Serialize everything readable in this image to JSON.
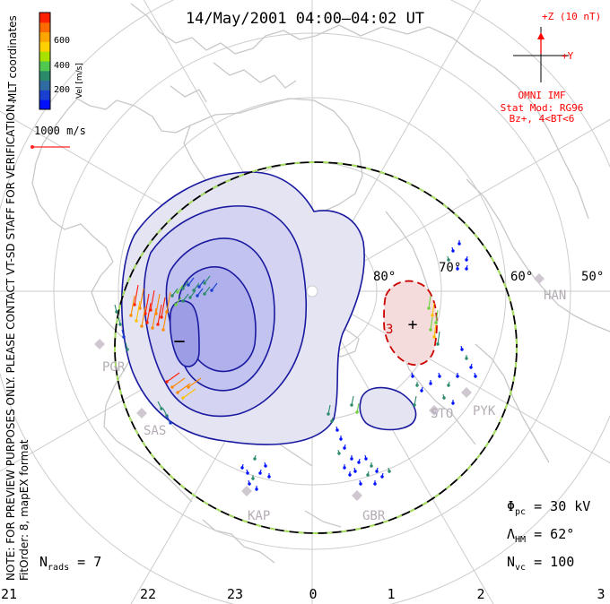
{
  "title": "14/May/2001 04:00–04:02 UT",
  "colorbar": {
    "unit_label": "Vel [m/s]",
    "ticks": [
      "600",
      "400",
      "200"
    ],
    "colors": [
      "#ff2000",
      "#ff6a00",
      "#ffa500",
      "#ffd000",
      "#a8e000",
      "#50c850",
      "#2a8a6a",
      "#2f6aa0",
      "#1a3fd0",
      "#0010ff"
    ]
  },
  "side_labels": {
    "coords": "MLT coordinates",
    "preview": "NOTE: FOR PREVIEW PURPOSES ONLY. PLEASE CONTACT VT-SD STAFF FOR VERIFICATION.",
    "fit": "FitOrder: 8, mapEX format"
  },
  "velocity_scale": {
    "label": "1000 m/s",
    "color": "#ff2020"
  },
  "imf": {
    "z_label": "+Z (10 nT)",
    "y_label": "+Y",
    "source": "OMNI IMF",
    "model": "Stat Mod: RG96",
    "condition": "Bz+, 4<BT<6",
    "color": "#ff0000"
  },
  "latitude_labels": [
    "80°",
    "70°",
    "60°",
    "50°"
  ],
  "radar_sites": [
    "PGR",
    "SAS",
    "KAP",
    "GBR",
    "STO",
    "PYK",
    "HAN"
  ],
  "mlt_labels": [
    "21",
    "22",
    "23",
    "0",
    "1",
    "2",
    "3"
  ],
  "stats": {
    "phi_pc": {
      "symbol": "Φ",
      "sub": "pc",
      "rest": " = 30 kV"
    },
    "lambda_hm": {
      "symbol": "Λ",
      "sub": "HM",
      "rest": " = 62°"
    },
    "n_vc": {
      "symbol": "N",
      "sub": "vc",
      "rest": " = 100"
    },
    "n_rads": {
      "symbol": "N",
      "sub": "rads",
      "rest": " = 7"
    }
  },
  "cells": {
    "negative_symbol": "−",
    "positive_symbol": "+",
    "negative_color": "#1a1aa0",
    "positive_color": "#cc0000"
  }
}
